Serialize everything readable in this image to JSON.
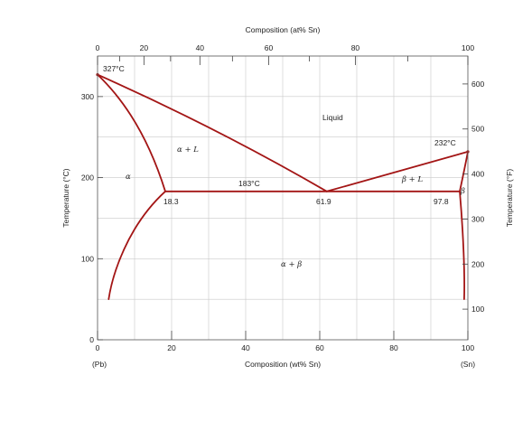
{
  "chart_data": {
    "type": "phase-diagram",
    "top_axis": {
      "label": "Composition (at% Sn)",
      "ticks": [
        "0",
        "20",
        "40",
        "60",
        "80",
        "100"
      ]
    },
    "bottom_axis": {
      "label": "Composition (wt% Sn)",
      "range": [
        0,
        100
      ],
      "ticks": [
        0,
        20,
        40,
        60,
        80,
        100
      ],
      "left_end": "(Pb)",
      "right_end": "(Sn)"
    },
    "left_axis": {
      "label": "Temperature (°C)",
      "range": [
        0,
        350
      ],
      "ticks": [
        0,
        100,
        200,
        300
      ]
    },
    "right_axis": {
      "label": "Temperature (°F)",
      "ticks": [
        100,
        200,
        300,
        400,
        500,
        600
      ]
    },
    "annotations": {
      "pb_melting": "327°C",
      "sn_melting": "232°C",
      "eutectic_temp": "183°C",
      "alpha_limit": "18.3",
      "eutectic_comp": "61.9",
      "beta_limit": "97.8"
    },
    "phases": {
      "liquid": "Liquid",
      "alpha": "α",
      "alpha_liquid": "α + L",
      "beta_liquid": "β + L",
      "beta": "β",
      "alpha_beta": "α + β"
    },
    "key_points": {
      "pb_melt": [
        0,
        327
      ],
      "sn_melt": [
        100,
        232
      ],
      "eutectic": [
        61.9,
        183
      ],
      "alpha_max": [
        18.3,
        183
      ],
      "beta_min": [
        97.8,
        183
      ]
    },
    "line_color": "#a31515"
  }
}
